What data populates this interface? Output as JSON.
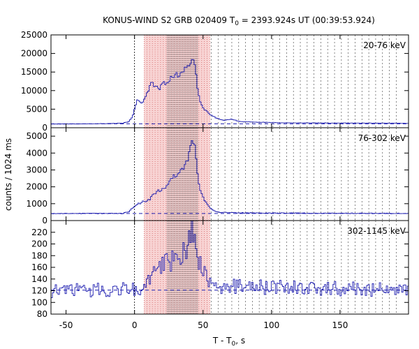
{
  "chart_data": {
    "type": "line",
    "title_prefix": "KONUS-WIND S2 GRB 020409 T",
    "title_sub": "0",
    "title_suffix": " = 2393.924s UT (00:39:53.924)",
    "xlabel_prefix": "T - T",
    "xlabel_sub": "0",
    "xlabel_suffix": ", s",
    "ylabel": "counts / 1024 ms",
    "xlim": [
      -61,
      200
    ],
    "xticks": [
      "-50",
      "0",
      "50",
      "100",
      "150"
    ],
    "xtick_values": [
      -50,
      0,
      50,
      100,
      150
    ],
    "shaded_interval": [
      7,
      55
    ],
    "emphasized_interval": [
      12,
      46
    ],
    "dense_interval": [
      24,
      46
    ],
    "panels": [
      {
        "label": "20-76 keV",
        "ylim": [
          0,
          25000
        ],
        "yticks": [
          "0",
          "5000",
          "10000",
          "15000",
          "20000",
          "25000"
        ],
        "ytick_values": [
          0,
          5000,
          10000,
          15000,
          20000,
          25000
        ],
        "background": 1050,
        "keypoints": [
          [
            -61,
            1000
          ],
          [
            -30,
            1050
          ],
          [
            -10,
            1200
          ],
          [
            -5,
            1600
          ],
          [
            -2,
            3000
          ],
          [
            0,
            6000
          ],
          [
            2,
            7800
          ],
          [
            5,
            6500
          ],
          [
            8,
            8500
          ],
          [
            10,
            10500
          ],
          [
            12,
            12000
          ],
          [
            15,
            11000
          ],
          [
            18,
            10500
          ],
          [
            20,
            12500
          ],
          [
            22,
            11500
          ],
          [
            24,
            12000
          ],
          [
            26,
            14000
          ],
          [
            28,
            13000
          ],
          [
            30,
            14500
          ],
          [
            32,
            13500
          ],
          [
            34,
            15000
          ],
          [
            36,
            16000
          ],
          [
            38,
            17000
          ],
          [
            40,
            16500
          ],
          [
            42,
            18500
          ],
          [
            44,
            16000
          ],
          [
            46,
            9000
          ],
          [
            48,
            6500
          ],
          [
            50,
            5000
          ],
          [
            55,
            3500
          ],
          [
            60,
            2500
          ],
          [
            65,
            2000
          ],
          [
            70,
            2300
          ],
          [
            75,
            1800
          ],
          [
            80,
            1600
          ],
          [
            90,
            1500
          ],
          [
            100,
            1400
          ],
          [
            120,
            1300
          ],
          [
            150,
            1250
          ],
          [
            200,
            1200
          ]
        ],
        "noise": 0.04
      },
      {
        "label": "76-302 keV",
        "ylim": [
          0,
          5500
        ],
        "yticks": [
          "0",
          "1000",
          "2000",
          "3000",
          "4000",
          "5000"
        ],
        "ytick_values": [
          0,
          1000,
          2000,
          3000,
          4000,
          5000
        ],
        "background": 420,
        "keypoints": [
          [
            -61,
            420
          ],
          [
            -10,
            420
          ],
          [
            -5,
            500
          ],
          [
            0,
            900
          ],
          [
            5,
            1100
          ],
          [
            10,
            1200
          ],
          [
            14,
            1600
          ],
          [
            18,
            1800
          ],
          [
            22,
            2000
          ],
          [
            26,
            2500
          ],
          [
            30,
            2700
          ],
          [
            34,
            3000
          ],
          [
            38,
            3600
          ],
          [
            42,
            5000
          ],
          [
            44,
            4000
          ],
          [
            46,
            2200
          ],
          [
            50,
            1300
          ],
          [
            55,
            700
          ],
          [
            60,
            500
          ],
          [
            80,
            450
          ],
          [
            200,
            420
          ]
        ],
        "noise": 0.05
      },
      {
        "label": "302-1145 keV",
        "ylim": [
          80,
          240
        ],
        "yticks": [
          "80",
          "100",
          "120",
          "140",
          "160",
          "180",
          "200",
          "220"
        ],
        "ytick_values": [
          80,
          100,
          120,
          140,
          160,
          180,
          200,
          220
        ],
        "background": 121,
        "keypoints": [
          [
            -61,
            120
          ],
          [
            0,
            122
          ],
          [
            8,
            130
          ],
          [
            14,
            150
          ],
          [
            20,
            165
          ],
          [
            26,
            170
          ],
          [
            32,
            180
          ],
          [
            38,
            195
          ],
          [
            42,
            225
          ],
          [
            44,
            190
          ],
          [
            48,
            160
          ],
          [
            52,
            140
          ],
          [
            56,
            128
          ],
          [
            200,
            121
          ]
        ],
        "noise": 0.1
      }
    ],
    "colors": {
      "curve": "#1f1fb0",
      "background_line": "#1f1fb0",
      "shade": "#f8d4d4",
      "shade_lines": "#c03030",
      "grid": "#555555",
      "frame": "#000000"
    }
  }
}
